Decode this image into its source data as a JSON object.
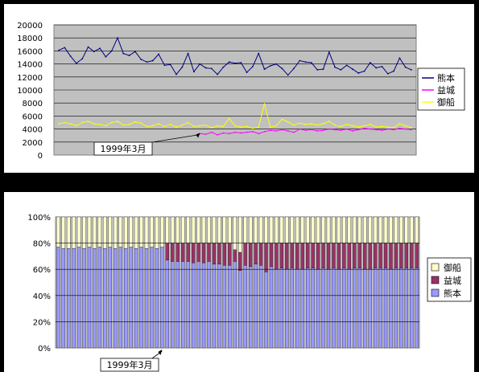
{
  "colors": {
    "plot_bg": "#c0c0c0",
    "kumamoto": "#000080",
    "mashiki": "#ff00ff",
    "mifune": "#ffff00",
    "bar_kumamoto": "#9999ff",
    "bar_mashiki": "#993366",
    "bar_mifune": "#ffffcc"
  },
  "chart_data": [
    {
      "type": "line",
      "title": "",
      "xlabel": "",
      "ylabel": "",
      "ylim": [
        0,
        20000
      ],
      "yticks": [
        "0",
        "2000",
        "4000",
        "6000",
        "8000",
        "10000",
        "12000",
        "14000",
        "16000",
        "18000",
        "20000"
      ],
      "grid": true,
      "legend_position": "right",
      "annotation": {
        "text": "1999年3月",
        "index": 24
      },
      "series": [
        {
          "name": "熊本",
          "color_key": "kumamoto",
          "values": [
            16100,
            16500,
            15200,
            14100,
            14800,
            16600,
            15900,
            16400,
            15100,
            16000,
            18000,
            15600,
            15300,
            15900,
            14700,
            14300,
            14500,
            15500,
            13800,
            13900,
            12400,
            13500,
            15600,
            12800,
            14000,
            13400,
            13300,
            12400,
            13500,
            14300,
            14100,
            14200,
            12700,
            13600,
            15600,
            13200,
            13700,
            14000,
            13300,
            12300,
            13300,
            14500,
            14300,
            14200,
            13100,
            13200,
            15800,
            13500,
            13100,
            13800,
            13200,
            12600,
            12900,
            14200,
            13400,
            13600,
            12500,
            12900,
            14900,
            13500,
            13100
          ]
        },
        {
          "name": "益城",
          "color_key": "mashiki",
          "values": [
            null,
            null,
            null,
            null,
            null,
            null,
            null,
            null,
            null,
            null,
            null,
            null,
            null,
            null,
            null,
            null,
            null,
            null,
            null,
            null,
            null,
            null,
            null,
            null,
            3300,
            3200,
            3500,
            3100,
            3400,
            3300,
            3500,
            3400,
            3500,
            3600,
            3300,
            3600,
            3800,
            3700,
            3900,
            3700,
            3500,
            4000,
            3800,
            3900,
            3700,
            3800,
            4000,
            3900,
            3800,
            4000,
            3700,
            3900,
            4100,
            4000,
            3900,
            3800,
            4000,
            3900,
            4100,
            4000,
            3900
          ]
        },
        {
          "name": "御船",
          "color_key": "mifune",
          "values": [
            4800,
            5000,
            4800,
            4500,
            5000,
            5200,
            4800,
            4700,
            4500,
            5000,
            5200,
            4600,
            4700,
            5100,
            4900,
            4400,
            4500,
            4800,
            4400,
            4700,
            4300,
            4600,
            5000,
            4400,
            4500,
            4600,
            4200,
            4500,
            4400,
            5600,
            4500,
            4300,
            4400,
            4100,
            4300,
            7900,
            4300,
            4500,
            5500,
            5100,
            4600,
            4900,
            4700,
            4800,
            4600,
            4800,
            5200,
            4600,
            4400,
            4700,
            4500,
            4300,
            4500,
            4700,
            4300,
            4400,
            4300,
            4200,
            4800,
            4500,
            4200
          ]
        }
      ]
    },
    {
      "type": "bar",
      "stacked": true,
      "percent": true,
      "title": "",
      "xlabel": "",
      "ylabel": "",
      "ylim": [
        0,
        100
      ],
      "yticks": [
        "0%",
        "20%",
        "40%",
        "60%",
        "80%",
        "100%"
      ],
      "grid": true,
      "legend_position": "right",
      "annotation": {
        "text": "1999年3月",
        "index": 20
      },
      "legend": [
        {
          "name": "御船",
          "color_key": "bar_mifune"
        },
        {
          "name": "益城",
          "color_key": "bar_mashiki"
        },
        {
          "name": "熊本",
          "color_key": "bar_kumamoto"
        }
      ],
      "kumamoto_pct": [
        77,
        76,
        76,
        76,
        77,
        76,
        77,
        76,
        77,
        76,
        77,
        76,
        77,
        76,
        77,
        76,
        77,
        76,
        77,
        76,
        77,
        67,
        66,
        66,
        66,
        66,
        65,
        66,
        65,
        66,
        64,
        64,
        63,
        63,
        66,
        59,
        63,
        62,
        64,
        63,
        58,
        62,
        60,
        61,
        60,
        61,
        60,
        60,
        61,
        61,
        60,
        61,
        60,
        61,
        60,
        61,
        60,
        61,
        61,
        60,
        60,
        61,
        61,
        61,
        60,
        61,
        61,
        61,
        61,
        61
      ],
      "mashiki_pct": [
        0,
        0,
        0,
        0,
        0,
        0,
        0,
        0,
        0,
        0,
        0,
        0,
        0,
        0,
        0,
        0,
        0,
        0,
        0,
        0,
        0,
        13,
        14,
        14,
        14,
        14,
        15,
        14,
        15,
        14,
        16,
        16,
        17,
        17,
        9,
        14,
        17,
        18,
        16,
        17,
        22,
        18,
        20,
        19,
        20,
        19,
        20,
        20,
        19,
        19,
        20,
        19,
        20,
        19,
        20,
        19,
        20,
        19,
        19,
        20,
        20,
        19,
        19,
        19,
        20,
        19,
        19,
        19,
        19,
        19
      ]
    }
  ]
}
